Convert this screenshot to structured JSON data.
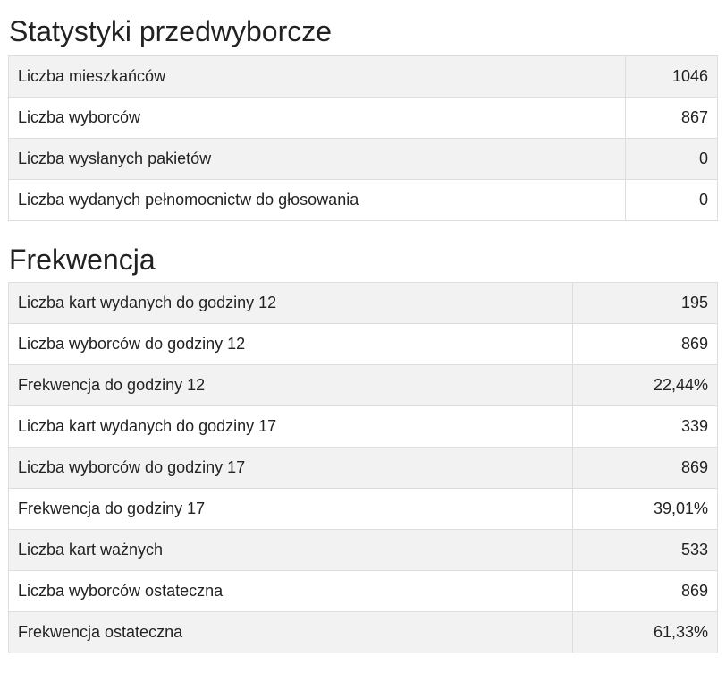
{
  "sections": [
    {
      "title": "Statystyki przedwyborcze",
      "rows": [
        [
          "Liczba mieszkańców",
          "1046"
        ],
        [
          "Liczba wyborców",
          "867"
        ],
        [
          "Liczba wysłanych pakietów",
          "0"
        ],
        [
          "Liczba wydanych pełnomocnictw do głosowania",
          "0"
        ]
      ]
    },
    {
      "title": "Frekwencja",
      "rows": [
        [
          "Liczba kart wydanych do godziny 12",
          "195"
        ],
        [
          "Liczba wyborców do godziny 12",
          "869"
        ],
        [
          "Frekwencja do godziny 12",
          "22,44%"
        ],
        [
          "Liczba kart wydanych do godziny 17",
          "339"
        ],
        [
          "Liczba wyborców do godziny 17",
          "869"
        ],
        [
          "Frekwencja do godziny 17",
          "39,01%"
        ],
        [
          "Liczba kart ważnych",
          "533"
        ],
        [
          "Liczba wyborców ostateczna",
          "869"
        ],
        [
          "Frekwencja ostateczna",
          "61,33%"
        ]
      ]
    }
  ]
}
